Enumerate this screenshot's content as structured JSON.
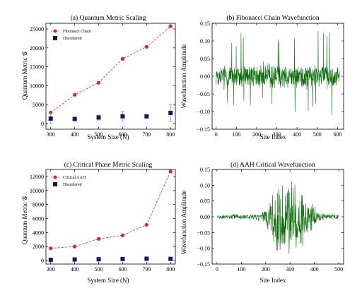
{
  "figure_background": "#ffffff",
  "chart_data": [
    {
      "id": "a",
      "type": "line",
      "title": "(a) Quantum Metric Scaling",
      "xlabel": "System Size (N)",
      "ylabel": "Quantum Metric 𝒢",
      "xlim": [
        280,
        820
      ],
      "ylim": [
        -1500,
        26500
      ],
      "xticks": [
        300,
        400,
        500,
        600,
        700,
        800
      ],
      "yticks": [
        0,
        5000,
        10000,
        15000,
        20000,
        25000
      ],
      "legend_position": "top-left",
      "series": [
        {
          "name": "Fibonacci Chain",
          "style": "line+circle-dashed",
          "color": "#dc2034",
          "x": [
            300,
            400,
            500,
            600,
            700,
            800
          ],
          "y": [
            2900,
            7600,
            10800,
            17100,
            20300,
            25700
          ]
        },
        {
          "name": "Disordered",
          "style": "square-errorbar",
          "color": "#0d1b5e",
          "error_color": "#999999",
          "x": [
            300,
            400,
            500,
            600,
            700,
            800
          ],
          "y": [
            1300,
            1200,
            1600,
            1900,
            1900,
            2800
          ],
          "yerr": [
            1300,
            300,
            700,
            1300,
            400,
            2200
          ]
        }
      ]
    },
    {
      "id": "b",
      "type": "line",
      "title": "(b) Fibonacci Chain Wavefunction",
      "xlabel": "Site Index",
      "ylabel": "Wavefunction Amplitude",
      "xlim": [
        -20,
        630
      ],
      "ylim": [
        -0.15,
        0.15
      ],
      "xticks": [
        0,
        100,
        200,
        300,
        400,
        500,
        600
      ],
      "yticks": [
        -0.15,
        -0.1,
        -0.05,
        0.0,
        0.05,
        0.1,
        0.15
      ],
      "ytick_labels": [
        "−0.15",
        "−0.10",
        "−0.05",
        "0.00",
        "0.05",
        "0.10",
        "0.15"
      ],
      "signal": {
        "n_points": 610,
        "color": "#0e6e0e",
        "pattern": "quasiperiodic"
      }
    },
    {
      "id": "c",
      "type": "line",
      "title": "(c) Critical Phase Metric Scaling",
      "xlabel": "System Size (N)",
      "ylabel": "Quantum Metric 𝒢",
      "xlim": [
        280,
        820
      ],
      "ylim": [
        -500,
        13000
      ],
      "xticks": [
        300,
        400,
        500,
        600,
        700,
        800
      ],
      "yticks": [
        0,
        2000,
        4000,
        6000,
        8000,
        10000,
        12000
      ],
      "legend_position": "top-left",
      "series": [
        {
          "name": "Critical AAH",
          "style": "line+circle-dashed",
          "color": "#dc2034",
          "x": [
            300,
            400,
            500,
            600,
            700,
            800
          ],
          "y": [
            1750,
            2000,
            3100,
            3600,
            5100,
            12700
          ]
        },
        {
          "name": "Disordered",
          "style": "square",
          "color": "#0d1b5e",
          "x": [
            300,
            400,
            500,
            600,
            700,
            800
          ],
          "y": [
            100,
            150,
            180,
            220,
            260,
            240
          ]
        }
      ]
    },
    {
      "id": "d",
      "type": "line",
      "title": "(d) AAH Critical Wavefunction",
      "xlabel": "Site Index",
      "ylabel": "Wavefunction Amplitude",
      "xlim": [
        -20,
        520
      ],
      "ylim": [
        -0.15,
        0.15
      ],
      "xticks": [
        0,
        100,
        200,
        300,
        400,
        500
      ],
      "yticks": [
        -0.15,
        -0.1,
        -0.05,
        0.0,
        0.05,
        0.1,
        0.15
      ],
      "ytick_labels": [
        "−0.15",
        "−0.10",
        "−0.05",
        "0.00",
        "0.05",
        "0.10",
        "0.15"
      ],
      "signal": {
        "n_points": 500,
        "color": "#0e6e0e",
        "pattern": "critical-envelope",
        "envelope_peaks": [
          260,
          345
        ]
      }
    }
  ]
}
